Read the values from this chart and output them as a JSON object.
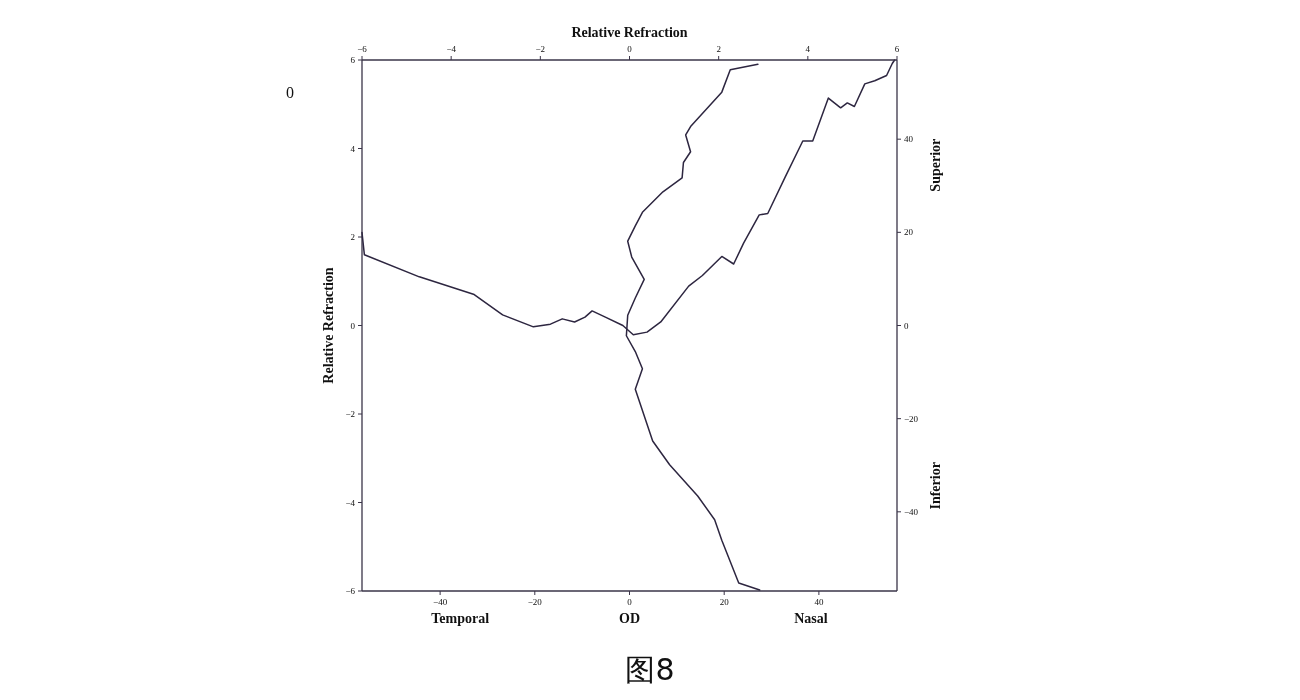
{
  "chart_data": [
    {
      "type": "line",
      "ylabel": "Relative Refraction",
      "xlabel": "OD",
      "annotations": [
        "Temporal",
        "Nasal",
        "0",
        "图8"
      ],
      "xlim": [
        -56.5,
        56.5
      ],
      "xticks": [
        -40,
        -20,
        0,
        20,
        40
      ],
      "ylim": [
        -6,
        6
      ],
      "yticks": [
        -6,
        -4,
        -2,
        0,
        2,
        4,
        6
      ],
      "series": [
        {
          "color": "#2d2640",
          "x": [
            -56.5,
            -56.0,
            -44.4,
            -32.8,
            -26.8,
            -20.3,
            -16.7,
            -14.2,
            -11.6,
            -9.4,
            -7.9,
            -5.1,
            -1.4,
            0.8,
            3.7,
            6.6,
            12.5,
            15.4,
            19.5,
            22.0,
            24.1,
            27.4,
            29.2,
            32.9,
            36.6,
            38.7,
            42.0,
            44.6,
            46.0,
            47.5,
            49.7,
            51.8,
            54.3,
            55.5,
            56.0
          ],
          "values": [
            2.1,
            1.6,
            1.1,
            0.7,
            0.24,
            -0.03,
            0.03,
            0.15,
            0.08,
            0.19,
            0.33,
            0.19,
            0.0,
            -0.21,
            -0.15,
            0.08,
            0.89,
            1.13,
            1.56,
            1.39,
            1.86,
            2.5,
            2.53,
            3.36,
            4.17,
            4.17,
            5.14,
            4.92,
            5.03,
            4.95,
            5.46,
            5.53,
            5.65,
            5.92,
            6.0
          ]
        }
      ]
    },
    {
      "type": "line",
      "xlabel": "Relative Refraction",
      "annotations": [
        "Superior",
        "Inferior"
      ],
      "xlim": [
        -6,
        6
      ],
      "xticks": [
        -6,
        -4,
        -2,
        0,
        2,
        4,
        6
      ],
      "ylim": [
        -57,
        57
      ],
      "yticks": [
        -40,
        -20,
        0,
        20,
        40
      ],
      "series": [
        {
          "color": "#2d2640",
          "x": [
            2.88,
            2.26,
            2.07,
            1.37,
            1.26,
            1.37,
            1.21,
            1.18,
            0.75,
            0.29,
            0.13,
            -0.04,
            0.05,
            0.33,
            0.13,
            -0.04,
            -0.07,
            0.13,
            0.29,
            0.13,
            0.52,
            0.9,
            1.53,
            1.91,
            2.07,
            2.45,
            2.92
          ],
          "values": [
            56.1,
            54.9,
            50.1,
            42.7,
            40.9,
            37.3,
            35.0,
            31.7,
            28.7,
            24.3,
            21.4,
            18.1,
            14.7,
            9.9,
            5.9,
            2.2,
            -2.2,
            -5.6,
            -9.3,
            -13.7,
            -24.8,
            -29.9,
            -36.6,
            -41.7,
            -46.1,
            -55.3,
            -56.8
          ]
        }
      ]
    }
  ]
}
